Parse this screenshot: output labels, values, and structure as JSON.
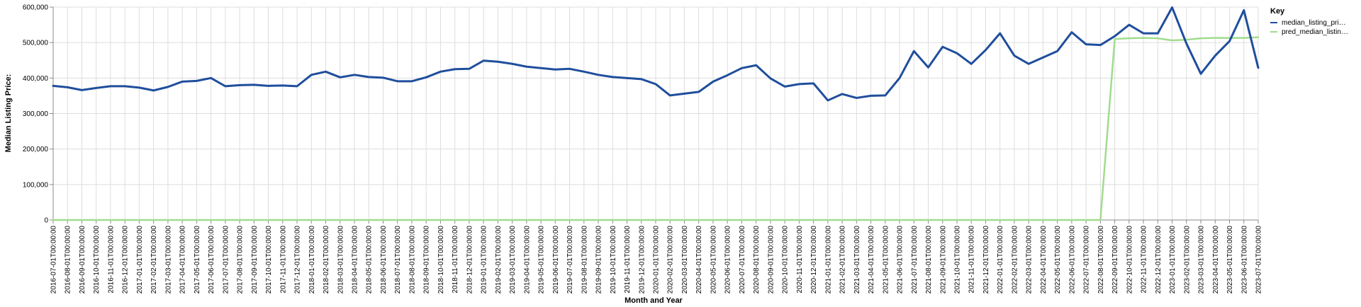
{
  "chart_data": {
    "type": "line",
    "title": "",
    "xlabel": "Month and Year",
    "ylabel": "Median Listing Price:",
    "ylim": [
      0,
      600000
    ],
    "y_ticks": [
      "0",
      "100,000",
      "200,000",
      "300,000",
      "400,000",
      "500,000",
      "600,000"
    ],
    "y_tick_values": [
      0,
      100000,
      200000,
      300000,
      400000,
      500000,
      600000
    ],
    "grid": true,
    "legend": {
      "title": "Key",
      "placement": "right",
      "labels": [
        "median_listing_pri…",
        "pred_median_listin…"
      ]
    },
    "colors": [
      "#1f4e9c",
      "#a1dc8e"
    ],
    "x": [
      "2016-07-01T00:00:00",
      "2016-08-01T00:00:00",
      "2016-09-01T00:00:00",
      "2016-10-01T00:00:00",
      "2016-11-01T00:00:00",
      "2016-12-01T00:00:00",
      "2017-01-01T00:00:00",
      "2017-02-01T00:00:00",
      "2017-03-01T00:00:00",
      "2017-04-01T00:00:00",
      "2017-05-01T00:00:00",
      "2017-06-01T00:00:00",
      "2017-07-01T00:00:00",
      "2017-08-01T00:00:00",
      "2017-09-01T00:00:00",
      "2017-10-01T00:00:00",
      "2017-11-01T00:00:00",
      "2017-12-01T00:00:00",
      "2018-01-01T00:00:00",
      "2018-02-01T00:00:00",
      "2018-03-01T00:00:00",
      "2018-04-01T00:00:00",
      "2018-05-01T00:00:00",
      "2018-06-01T00:00:00",
      "2018-07-01T00:00:00",
      "2018-08-01T00:00:00",
      "2018-09-01T00:00:00",
      "2018-10-01T00:00:00",
      "2018-11-01T00:00:00",
      "2018-12-01T00:00:00",
      "2019-01-01T00:00:00",
      "2019-02-01T00:00:00",
      "2019-03-01T00:00:00",
      "2019-04-01T00:00:00",
      "2019-05-01T00:00:00",
      "2019-06-01T00:00:00",
      "2019-07-01T00:00:00",
      "2019-08-01T00:00:00",
      "2019-09-01T00:00:00",
      "2019-10-01T00:00:00",
      "2019-11-01T00:00:00",
      "2019-12-01T00:00:00",
      "2020-01-01T00:00:00",
      "2020-02-01T00:00:00",
      "2020-03-01T00:00:00",
      "2020-04-01T00:00:00",
      "2020-05-01T00:00:00",
      "2020-06-01T00:00:00",
      "2020-07-01T00:00:00",
      "2020-08-01T00:00:00",
      "2020-09-01T00:00:00",
      "2020-10-01T00:00:00",
      "2020-11-01T00:00:00",
      "2020-12-01T00:00:00",
      "2021-01-01T00:00:00",
      "2021-02-01T00:00:00",
      "2021-03-01T00:00:00",
      "2021-04-01T00:00:00",
      "2021-05-01T00:00:00",
      "2021-06-01T00:00:00",
      "2021-07-01T00:00:00",
      "2021-08-01T00:00:00",
      "2021-09-01T00:00:00",
      "2021-10-01T00:00:00",
      "2021-11-01T00:00:00",
      "2021-12-01T00:00:00",
      "2022-01-01T00:00:00",
      "2022-02-01T00:00:00",
      "2022-03-01T00:00:00",
      "2022-04-01T00:00:00",
      "2022-05-01T00:00:00",
      "2022-06-01T00:00:00",
      "2022-07-01T00:00:00",
      "2022-08-01T00:00:00",
      "2022-09-01T00:00:00",
      "2022-10-01T00:00:00",
      "2022-11-01T00:00:00",
      "2022-12-01T00:00:00",
      "2023-01-01T00:00:00",
      "2023-02-01T00:00:00",
      "2023-03-01T00:00:00",
      "2023-04-01T00:00:00",
      "2023-05-01T00:00:00",
      "2023-06-01T00:00:00",
      "2023-07-01T00:00:00"
    ],
    "series": [
      {
        "name": "median_listing_pri…",
        "values": [
          378000,
          374000,
          366000,
          372000,
          377000,
          377000,
          373000,
          365000,
          375000,
          390000,
          392000,
          400000,
          377000,
          380000,
          381000,
          378000,
          379000,
          377000,
          409000,
          418000,
          402000,
          409000,
          403000,
          401000,
          391000,
          391000,
          402000,
          418000,
          425000,
          426000,
          449000,
          446000,
          440000,
          432000,
          428000,
          424000,
          426000,
          418000,
          409000,
          403000,
          400000,
          397000,
          383000,
          351000,
          356000,
          361000,
          390000,
          408000,
          428000,
          436000,
          399000,
          376000,
          383000,
          385000,
          337000,
          355000,
          344000,
          350000,
          351000,
          400000,
          476000,
          430000,
          488000,
          470000,
          440000,
          479000,
          526000,
          463000,
          440000,
          458000,
          476000,
          529000,
          495000,
          493000,
          518000,
          550000,
          526000,
          526000,
          599000,
          497000,
          412000,
          463000,
          504000,
          591000,
          429000
        ]
      },
      {
        "name": "pred_median_listin…",
        "values": [
          0,
          0,
          0,
          0,
          0,
          0,
          0,
          0,
          0,
          0,
          0,
          0,
          0,
          0,
          0,
          0,
          0,
          0,
          0,
          0,
          0,
          0,
          0,
          0,
          0,
          0,
          0,
          0,
          0,
          0,
          0,
          0,
          0,
          0,
          0,
          0,
          0,
          0,
          0,
          0,
          0,
          0,
          0,
          0,
          0,
          0,
          0,
          0,
          0,
          0,
          0,
          0,
          0,
          0,
          0,
          0,
          0,
          0,
          0,
          0,
          0,
          0,
          0,
          0,
          0,
          0,
          0,
          0,
          0,
          0,
          0,
          0,
          0,
          0,
          510000,
          512000,
          513000,
          512000,
          506000,
          508000,
          512000,
          513000,
          513000,
          513000,
          515000
        ]
      }
    ]
  }
}
